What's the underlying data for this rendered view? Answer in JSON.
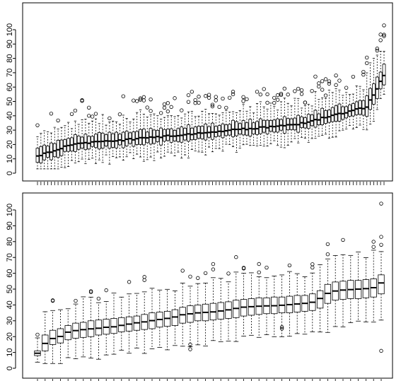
{
  "chart_data": [
    {
      "type": "box",
      "title": "",
      "xlabel": "",
      "ylabel": "",
      "ylim": [
        0,
        105
      ],
      "y_ticks": [
        "0",
        "10",
        "20",
        "30",
        "40",
        "50",
        "60",
        "70",
        "80",
        "90",
        "100"
      ],
      "grid": false,
      "legend": "none",
      "n_boxes": 102,
      "median_start": 12,
      "median_end": 68,
      "iqr_start": 8,
      "iqr_end": 14,
      "whisker_low_min": 4,
      "whisker_high_max": 84
    },
    {
      "type": "box",
      "title": "",
      "xlabel": "",
      "ylabel": "",
      "ylim": [
        0,
        105
      ],
      "y_ticks": [
        "0",
        "10",
        "20",
        "30",
        "40",
        "50",
        "60",
        "70",
        "80",
        "90",
        "100"
      ],
      "grid": false,
      "legend": "none",
      "n_boxes": 46,
      "medians": [
        9.5,
        15.7,
        18.8,
        20.1,
        22.8,
        23.8,
        24.4,
        24.9,
        25.3,
        25.9,
        26.2,
        27.1,
        27.9,
        28.7,
        29.3,
        30.1,
        30.8,
        31.5,
        32.4,
        33.8,
        34.4,
        35.0,
        35.3,
        35.6,
        36.2,
        36.9,
        37.8,
        38.6,
        38.9,
        39.2,
        39.4,
        39.5,
        39.8,
        40.2,
        40.6,
        41.0,
        41.7,
        44.1,
        47.3,
        48.8,
        49.4,
        49.7,
        50.0,
        50.3,
        50.9,
        53.9
      ],
      "q1": [
        8,
        11,
        15,
        16,
        18,
        19,
        19.5,
        20,
        21,
        21.5,
        22,
        23,
        23.5,
        24,
        24.5,
        25,
        26,
        26.5,
        27,
        28.5,
        29,
        30,
        30,
        30.5,
        31,
        31.5,
        32,
        33,
        33.5,
        34,
        34.5,
        34.5,
        35,
        35,
        35.5,
        36,
        36.5,
        38,
        41,
        43,
        43.5,
        44,
        44,
        44.5,
        45,
        47
      ],
      "q3": [
        11,
        21,
        24,
        25,
        27,
        28.5,
        29,
        30,
        30.5,
        31,
        31.5,
        32,
        32.5,
        33,
        34,
        35,
        35.5,
        36,
        37,
        38.5,
        39.5,
        40,
        40.5,
        41,
        41.5,
        42,
        43,
        43.5,
        44,
        44.5,
        44.5,
        45,
        45,
        45.5,
        46,
        46,
        47,
        49,
        53,
        54.5,
        55,
        55.5,
        55.5,
        56,
        56.5,
        59
      ]
    }
  ]
}
